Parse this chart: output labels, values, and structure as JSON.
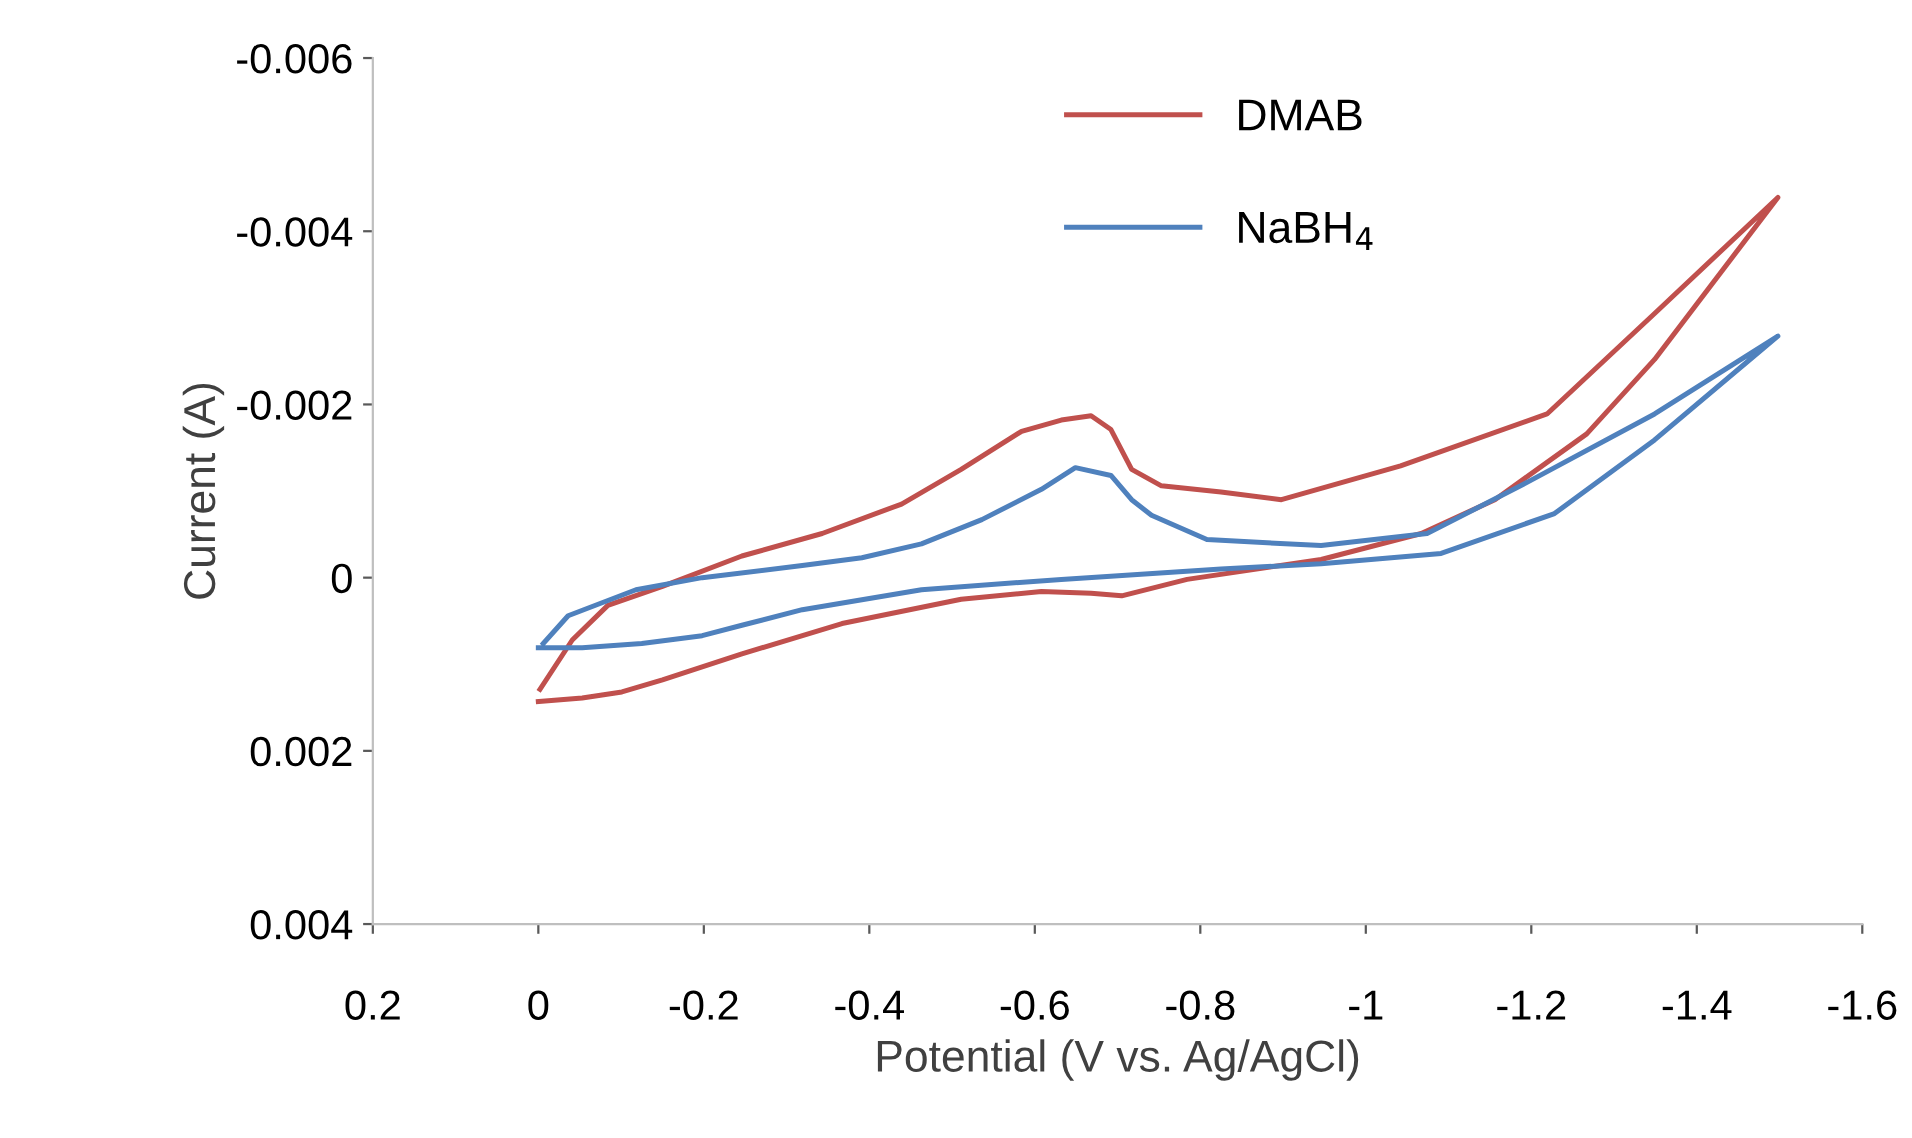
{
  "chart_data": {
    "type": "line",
    "xlabel": "Potential (V vs. Ag/AgCl)",
    "ylabel": "Current (A)",
    "xlim": [
      0.2,
      -1.6
    ],
    "xticks": [
      0.2,
      0,
      -0.2,
      -0.4,
      -0.6,
      -0.8,
      -1,
      -1.2,
      -1.4,
      -1.6
    ],
    "ylim": [
      0.004,
      -0.006
    ],
    "yticks": [
      -0.006,
      -0.004,
      -0.002,
      0,
      0.002,
      0.004
    ],
    "grid": false,
    "legend": "top right",
    "marker": "none",
    "line_style": "solid",
    "series": [
      {
        "name": "DMAB",
        "color": "#c0504d",
        "x": [
          -0.002,
          -0.041,
          -0.084,
          -0.15,
          -0.246,
          -0.343,
          -0.439,
          -0.511,
          -0.584,
          -0.632,
          -0.668,
          -0.692,
          -0.717,
          -0.753,
          -0.825,
          -0.898,
          -1.042,
          -1.219,
          -1.349,
          -1.498,
          -1.349,
          -1.267,
          -1.156,
          -1.067,
          -0.946,
          -0.784,
          -0.705,
          -0.668,
          -0.608,
          -0.511,
          -0.367,
          -0.246,
          -0.15,
          -0.101,
          -0.053,
          0
        ],
        "values": [
          0.00129,
          0.00072,
          0.00032,
          0.0001,
          -0.00025,
          -0.00051,
          -0.00085,
          -0.00125,
          -0.00169,
          -0.00182,
          -0.00187,
          -0.00171,
          -0.00125,
          -0.00106,
          -0.00099,
          -0.0009,
          -0.00129,
          -0.00189,
          -0.00305,
          -0.00439,
          -0.00252,
          -0.00166,
          -0.0009,
          -0.00051,
          -0.00021,
          2e-05,
          0.00021,
          0.00018,
          0.00016,
          0.00025,
          0.00053,
          0.00088,
          0.00118,
          0.00132,
          0.00139,
          0.00143
        ]
      },
      {
        "name": "NaBH$_{4}$",
        "color": "#4f81bd",
        "x": [
          -0.006,
          -0.036,
          -0.118,
          -0.198,
          -0.319,
          -0.391,
          -0.463,
          -0.536,
          -0.608,
          -0.649,
          -0.692,
          -0.717,
          -0.741,
          -0.808,
          -0.946,
          -1.074,
          -1.187,
          -1.349,
          -1.498,
          -1.349,
          -1.228,
          -1.091,
          -0.946,
          -0.825,
          -0.632,
          -0.463,
          -0.319,
          -0.246,
          -0.198,
          -0.125,
          -0.053,
          0
        ],
        "values": [
          0.00076,
          0.00044,
          0.00014,
          0,
          -0.00014,
          -0.00023,
          -0.00039,
          -0.00067,
          -0.00102,
          -0.00127,
          -0.00118,
          -0.0009,
          -0.00072,
          -0.00044,
          -0.00037,
          -0.00051,
          -0.00106,
          -0.00189,
          -0.00279,
          -0.00159,
          -0.00074,
          -0.00028,
          -0.00016,
          -0.0001,
          2e-05,
          0.00014,
          0.00037,
          0.00055,
          0.00067,
          0.00076,
          0.00081,
          0.00081
        ]
      }
    ]
  }
}
